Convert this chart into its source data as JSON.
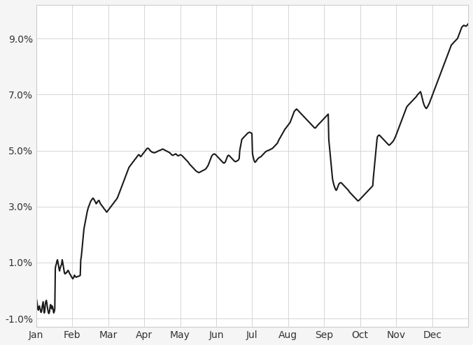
{
  "title": "",
  "background_color": "#f5f5f5",
  "plot_background_color": "#ffffff",
  "line_color": "#1a1a1a",
  "line_width": 1.5,
  "grid_color": "#cccccc",
  "ylim": [
    -1.3,
    10.2
  ],
  "yticks": [
    -1.0,
    1.0,
    3.0,
    5.0,
    7.0,
    9.0
  ],
  "months": [
    "Jan",
    "Feb",
    "Mar",
    "Apr",
    "May",
    "Jun",
    "Jul",
    "Aug",
    "Sep",
    "Oct",
    "Nov",
    "Dec"
  ],
  "seasonality_data": [
    -0.3,
    -0.35,
    -0.5,
    -0.65,
    -0.7,
    -0.6,
    -0.55,
    -0.65,
    -0.7,
    -0.78,
    -0.75,
    -0.6,
    -0.5,
    -0.4,
    -0.62,
    -0.8,
    -0.75,
    -0.5,
    -0.4,
    -0.35,
    -0.45,
    -0.6,
    -0.7,
    -0.8,
    -0.82,
    -0.75,
    -0.6,
    -0.5,
    -0.55,
    -0.65,
    -0.55,
    -0.6,
    -0.7,
    -0.8,
    -0.75,
    -0.65,
    0.8,
    0.9,
    0.95,
    1.05,
    1.1,
    1.0,
    0.9,
    0.78,
    0.7,
    0.8,
    0.85,
    0.9,
    0.95,
    1.1,
    1.0,
    0.88,
    0.75,
    0.65,
    0.6,
    0.6,
    0.62,
    0.65,
    0.65,
    0.7,
    0.72,
    0.7,
    0.65,
    0.6,
    0.58,
    0.55,
    0.5,
    0.48,
    0.45,
    0.42,
    0.45,
    0.48,
    0.55,
    0.52,
    0.5,
    0.48,
    0.48,
    0.49,
    0.5,
    0.51,
    0.51,
    0.52,
    0.53,
    0.54,
    1.1,
    1.2,
    1.4,
    1.6,
    1.8,
    2.0,
    2.2,
    2.3,
    2.4,
    2.5,
    2.6,
    2.7,
    2.8,
    2.88,
    2.95,
    3.0,
    3.05,
    3.1,
    3.15,
    3.2,
    3.22,
    3.25,
    3.28,
    3.3,
    3.28,
    3.25,
    3.22,
    3.18,
    3.15,
    3.1,
    3.12,
    3.15,
    3.18,
    3.2,
    3.22,
    3.2,
    3.15,
    3.1,
    3.08,
    3.05,
    3.03,
    3.0,
    2.98,
    2.95,
    2.92,
    2.9,
    2.88,
    2.85,
    2.82,
    2.8,
    2.82,
    2.85,
    2.88,
    2.9,
    2.92,
    2.95,
    2.98,
    3.0,
    3.02,
    3.05,
    3.08,
    3.1,
    3.12,
    3.15,
    3.18,
    3.2,
    3.22,
    3.25,
    3.28,
    3.3,
    3.35,
    3.4,
    3.45,
    3.5,
    3.55,
    3.6,
    3.65,
    3.7,
    3.75,
    3.8,
    3.85,
    3.9,
    3.95,
    4.0,
    4.05,
    4.1,
    4.15,
    4.2,
    4.25,
    4.3,
    4.35,
    4.4,
    4.42,
    4.45,
    4.48,
    4.5,
    4.52,
    4.55,
    4.58,
    4.6,
    4.62,
    4.65,
    4.68,
    4.7,
    4.72,
    4.75,
    4.78,
    4.8,
    4.82,
    4.85,
    4.85,
    4.83,
    4.8,
    4.78,
    4.8,
    4.82,
    4.85,
    4.88,
    4.9,
    4.92,
    4.95,
    4.97,
    5.0,
    5.02,
    5.05,
    5.07,
    5.08,
    5.08,
    5.07,
    5.05,
    5.02,
    5.0,
    4.98,
    4.96,
    4.95,
    4.94,
    4.93,
    4.93,
    4.92,
    4.92,
    4.93,
    4.93,
    4.94,
    4.95,
    4.96,
    4.97,
    4.98,
    4.99,
    5.0,
    5.0,
    5.01,
    5.02,
    5.03,
    5.04,
    5.05,
    5.05,
    5.04,
    5.03,
    5.02,
    5.01,
    5.0,
    4.99,
    4.98,
    4.97,
    4.96,
    4.95,
    4.94,
    4.93,
    4.92,
    4.9,
    4.88,
    4.86,
    4.84,
    4.83,
    4.83,
    4.84,
    4.85,
    4.86,
    4.87,
    4.88,
    4.87,
    4.85,
    4.83,
    4.82,
    4.81,
    4.82,
    4.83,
    4.84,
    4.85,
    4.84,
    4.83,
    4.82,
    4.8,
    4.78,
    4.76,
    4.74,
    4.72,
    4.7,
    4.68,
    4.66,
    4.64,
    4.62,
    4.6,
    4.58,
    4.55,
    4.52,
    4.5,
    4.48,
    4.46,
    4.44,
    4.42,
    4.4,
    4.38,
    4.36,
    4.34,
    4.32,
    4.3,
    4.28,
    4.26,
    4.25,
    4.24,
    4.23,
    4.22,
    4.21,
    4.22,
    4.23,
    4.24,
    4.25,
    4.26,
    4.27,
    4.28,
    4.29,
    4.3,
    4.31,
    4.32,
    4.33,
    4.35,
    4.37,
    4.4,
    4.43,
    4.46,
    4.5,
    4.55,
    4.6,
    4.65,
    4.7,
    4.75,
    4.8,
    4.82,
    4.85,
    4.86,
    4.87,
    4.88,
    4.87,
    4.86,
    4.84,
    4.82,
    4.8,
    4.78,
    4.76,
    4.74,
    4.72,
    4.7,
    4.68,
    4.66,
    4.64,
    4.62,
    4.6,
    4.58,
    4.56,
    4.55,
    4.56,
    4.57,
    4.6,
    4.65,
    4.7,
    4.75,
    4.8,
    4.82,
    4.83,
    4.82,
    4.8,
    4.78,
    4.76,
    4.74,
    4.72,
    4.7,
    4.68,
    4.66,
    4.64,
    4.62,
    4.61,
    4.6,
    4.61,
    4.62,
    4.63,
    4.64,
    4.65,
    4.68,
    4.72,
    5.0,
    5.1,
    5.2,
    5.3,
    5.4,
    5.42,
    5.44,
    5.46,
    5.48,
    5.5,
    5.52,
    5.54,
    5.56,
    5.58,
    5.6,
    5.62,
    5.63,
    5.64,
    5.65,
    5.65,
    5.64,
    5.63,
    5.62,
    5.6,
    4.9,
    4.8,
    4.72,
    4.65,
    4.6,
    4.58,
    4.6,
    4.62,
    4.65,
    4.68,
    4.7,
    4.72,
    4.74,
    4.75,
    4.76,
    4.77,
    4.78,
    4.8,
    4.82,
    4.84,
    4.86,
    4.88,
    4.9,
    4.92,
    4.94,
    4.96,
    4.97,
    4.98,
    4.99,
    5.0,
    5.0,
    5.01,
    5.02,
    5.03,
    5.04,
    5.05,
    5.06,
    5.07,
    5.08,
    5.1,
    5.12,
    5.14,
    5.16,
    5.18,
    5.2,
    5.22,
    5.24,
    5.26,
    5.3,
    5.35,
    5.38,
    5.42,
    5.45,
    5.48,
    5.52,
    5.55,
    5.58,
    5.62,
    5.65,
    5.68,
    5.72,
    5.75,
    5.78,
    5.8,
    5.82,
    5.85,
    5.88,
    5.9,
    5.92,
    5.95,
    5.98,
    6.0,
    6.05,
    6.1,
    6.15,
    6.2,
    6.25,
    6.3,
    6.35,
    6.4,
    6.42,
    6.44,
    6.46,
    6.48,
    6.47,
    6.45,
    6.43,
    6.41,
    6.39,
    6.37,
    6.35,
    6.33,
    6.31,
    6.29,
    6.27,
    6.25,
    6.23,
    6.21,
    6.19,
    6.17,
    6.15,
    6.13,
    6.11,
    6.09,
    6.07,
    6.05,
    6.03,
    6.01,
    5.99,
    5.97,
    5.95,
    5.93,
    5.91,
    5.89,
    5.87,
    5.85,
    5.83,
    5.81,
    5.8,
    5.81,
    5.83,
    5.85,
    5.88,
    5.9,
    5.92,
    5.94,
    5.96,
    5.98,
    6.0,
    6.02,
    6.04,
    6.06,
    6.08,
    6.1,
    6.12,
    6.14,
    6.16,
    6.18,
    6.2,
    6.22,
    6.24,
    6.26,
    6.28,
    6.3,
    5.4,
    5.2,
    5.0,
    4.8,
    4.6,
    4.4,
    4.2,
    4.0,
    3.9,
    3.82,
    3.75,
    3.7,
    3.65,
    3.6,
    3.58,
    3.6,
    3.65,
    3.7,
    3.75,
    3.8,
    3.82,
    3.84,
    3.85,
    3.85,
    3.84,
    3.82,
    3.8,
    3.78,
    3.76,
    3.74,
    3.72,
    3.7,
    3.68,
    3.66,
    3.64,
    3.62,
    3.6,
    3.58,
    3.55,
    3.52,
    3.5,
    3.48,
    3.46,
    3.44,
    3.42,
    3.4,
    3.38,
    3.36,
    3.34,
    3.32,
    3.3,
    3.28,
    3.26,
    3.24,
    3.22,
    3.2,
    3.21,
    3.22,
    3.24,
    3.26,
    3.28,
    3.3,
    3.32,
    3.34,
    3.36,
    3.38,
    3.4,
    3.42,
    3.44,
    3.46,
    3.48,
    3.5,
    3.52,
    3.54,
    3.56,
    3.58,
    3.6,
    3.62,
    3.64,
    3.66,
    3.68,
    3.7,
    3.72,
    3.74,
    4.0,
    4.2,
    4.4,
    4.6,
    4.8,
    5.0,
    5.2,
    5.4,
    5.5,
    5.52,
    5.54,
    5.55,
    5.54,
    5.52,
    5.5,
    5.48,
    5.46,
    5.44,
    5.42,
    5.4,
    5.38,
    5.36,
    5.34,
    5.32,
    5.3,
    5.28,
    5.26,
    5.24,
    5.22,
    5.2,
    5.19,
    5.2,
    5.22,
    5.24,
    5.26,
    5.28,
    5.3,
    5.32,
    5.35,
    5.38,
    5.42,
    5.46,
    5.5,
    5.55,
    5.6,
    5.65,
    5.7,
    5.75,
    5.8,
    5.85,
    5.9,
    5.95,
    6.0,
    6.05,
    6.1,
    6.15,
    6.2,
    6.25,
    6.3,
    6.35,
    6.4,
    6.45,
    6.5,
    6.55,
    6.58,
    6.6,
    6.62,
    6.64,
    6.66,
    6.68,
    6.7,
    6.72,
    6.74,
    6.76,
    6.78,
    6.8,
    6.82,
    6.84,
    6.86,
    6.88,
    6.9,
    6.92,
    6.95,
    6.98,
    7.0,
    7.02,
    7.04,
    7.06,
    7.08,
    7.1,
    7.05,
    6.98,
    6.9,
    6.82,
    6.74,
    6.68,
    6.62,
    6.58,
    6.55,
    6.52,
    6.5,
    6.52,
    6.55,
    6.58,
    6.62,
    6.66,
    6.7,
    6.75,
    6.8,
    6.85,
    6.9,
    6.95,
    7.0,
    7.05,
    7.1,
    7.15,
    7.2,
    7.25,
    7.3,
    7.35,
    7.4,
    7.45,
    7.5,
    7.55,
    7.6,
    7.65,
    7.7,
    7.75,
    7.8,
    7.85,
    7.9,
    7.95,
    8.0,
    8.05,
    8.1,
    8.15,
    8.2,
    8.25,
    8.3,
    8.35,
    8.4,
    8.45,
    8.5,
    8.55,
    8.6,
    8.65,
    8.7,
    8.75,
    8.78,
    8.8,
    8.82,
    8.84,
    8.86,
    8.88,
    8.9,
    8.92,
    8.94,
    8.96,
    8.98,
    9.0,
    9.05,
    9.1,
    9.15,
    9.2,
    9.25,
    9.3,
    9.35,
    9.4,
    9.42,
    9.44,
    9.46,
    9.47,
    9.46,
    9.45,
    9.44,
    9.44,
    9.45,
    9.47,
    9.5,
    9.52
  ]
}
